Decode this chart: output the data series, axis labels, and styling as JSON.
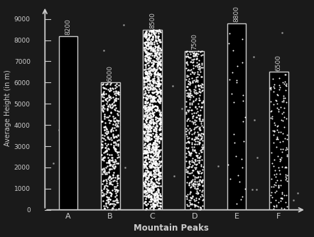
{
  "categories": [
    "A",
    "B",
    "C",
    "D",
    "E",
    "F"
  ],
  "values": [
    8200,
    6000,
    8500,
    7500,
    8800,
    6500
  ],
  "bar_labels": [
    "8200",
    "6000",
    "8500",
    "7500",
    "8800",
    "6500"
  ],
  "xlabel": "Mountain Peaks",
  "ylabel": "Average Height (in m)",
  "ylim": [
    0,
    9600
  ],
  "yticks": [
    0,
    1000,
    2000,
    3000,
    4000,
    5000,
    6000,
    7000,
    8000,
    9000
  ],
  "background_color": "#1a1a1a",
  "bar_edge_color": "#cccccc",
  "label_color": "#cccccc",
  "tick_color": "#cccccc",
  "bar_width": 0.45,
  "figure_bg": "#1a1a1a",
  "dot_counts": [
    0,
    400,
    1200,
    500,
    30,
    150
  ],
  "dot_sizes": [
    0,
    3.0,
    3.5,
    2.5,
    2.0,
    2.0
  ]
}
